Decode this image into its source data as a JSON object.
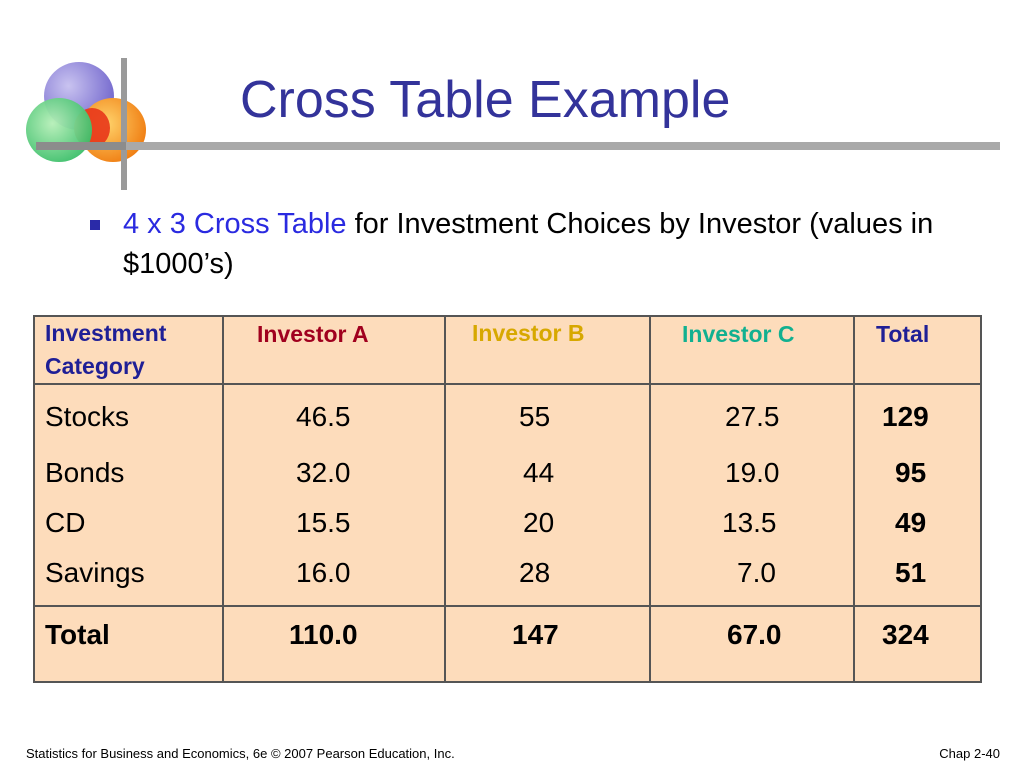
{
  "slide": {
    "title": "Cross Table Example",
    "bullet": {
      "highlight": "4 x 3 Cross Table",
      "rest": " for Investment Choices by Investor (values in $1000’s)"
    },
    "colors": {
      "title": "#33339a",
      "investor_a": "#a0001e",
      "investor_b": "#d7a800",
      "investor_c": "#11b090",
      "table_bg": "#fddcbb"
    }
  },
  "table": {
    "headers": {
      "category_line1": "Investment",
      "category_line2": "Category",
      "investor_a": "Investor A",
      "investor_b": "Investor B",
      "investor_c": "Investor C",
      "total": "Total"
    },
    "rows": [
      {
        "category": "Stocks",
        "a": "46.5",
        "b": "55",
        "c": "27.5",
        "total": "129"
      },
      {
        "category": "Bonds",
        "a": "32.0",
        "b": "44",
        "c": "19.0",
        "total": "95"
      },
      {
        "category": "CD",
        "a": "15.5",
        "b": "20",
        "c": "13.5",
        "total": "49"
      },
      {
        "category": "Savings",
        "a": "16.0",
        "b": "28",
        "c": "7.0",
        "total": "51"
      }
    ],
    "totals": {
      "label": "Total",
      "a": "110.0",
      "b": "147",
      "c": "67.0",
      "total": "324"
    }
  },
  "footer": {
    "left": "Statistics for Business and Economics, 6e © 2007 Pearson Education, Inc.",
    "right": "Chap 2-40"
  }
}
